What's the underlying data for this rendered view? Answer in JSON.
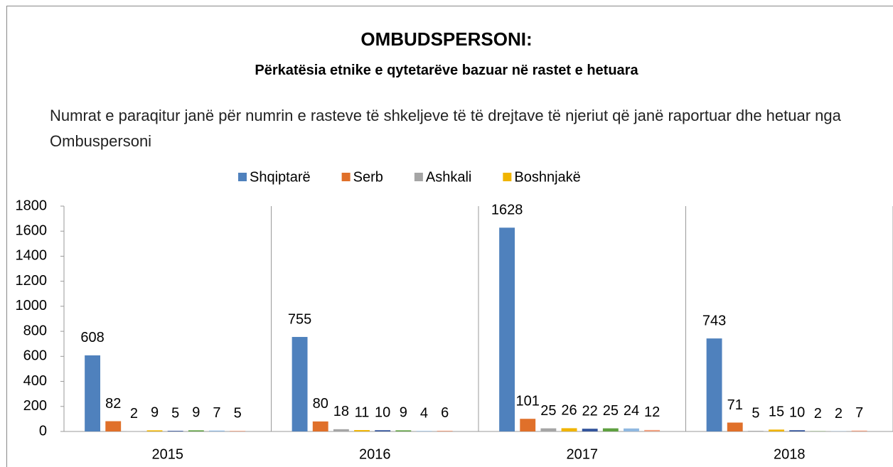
{
  "chart_data": {
    "type": "bar",
    "title": "OMBUDSPERSONI:",
    "subtitle": "Përkatësia etnike e qytetarëve bazuar në rastet e hetuara",
    "annotation": "Numrat e paraqitur janë për numrin e rasteve të shkeljeve të të drejtave të njeriut që janë raportuar dhe hetuar nga Ombuspersoni",
    "categories": [
      "2015",
      "2016",
      "2017",
      "2018"
    ],
    "series": [
      {
        "name": "Shqiptarë",
        "color": "#4f81bd",
        "values": [
          608,
          755,
          1628,
          743
        ]
      },
      {
        "name": "Serb",
        "color": "#e0702a",
        "values": [
          82,
          80,
          101,
          71
        ]
      },
      {
        "name": "Ashkali",
        "color": "#a5a5a5",
        "values": [
          2,
          18,
          25,
          5
        ]
      },
      {
        "name": "Boshnjakë",
        "color": "#f0b400",
        "values": [
          9,
          11,
          26,
          15
        ]
      },
      {
        "color": "#34559c",
        "values": [
          5,
          10,
          22,
          10
        ]
      },
      {
        "color": "#5ea040",
        "values": [
          9,
          9,
          25,
          2
        ]
      },
      {
        "color": "#8fb8e0",
        "values": [
          7,
          4,
          24,
          2
        ]
      },
      {
        "color": "#f0a080",
        "values": [
          5,
          6,
          12,
          7
        ]
      }
    ],
    "ylim": [
      0,
      1800
    ],
    "yticks": [
      0,
      200,
      400,
      600,
      800,
      1000,
      1200,
      1400,
      1600,
      1800
    ],
    "legend": "top"
  }
}
